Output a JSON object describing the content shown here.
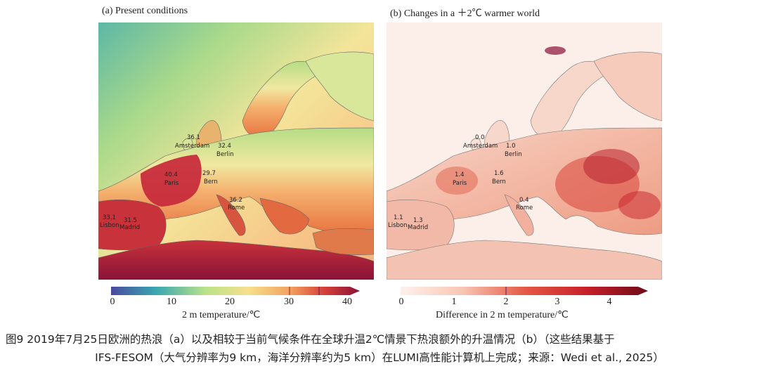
{
  "panel_a": {
    "title": "(a) Present conditions",
    "colorbar_label": "2 m temperature/℃",
    "ticks": [
      "0",
      "10",
      "20",
      "30",
      "40"
    ],
    "cities": [
      {
        "name": "Amsterdam",
        "value": "36.1"
      },
      {
        "name": "Berlin",
        "value": "32.4"
      },
      {
        "name": "Paris",
        "value": "40.4"
      },
      {
        "name": "Bern",
        "value": "29.7"
      },
      {
        "name": "Rome",
        "value": "36.2"
      },
      {
        "name": "Lisbon",
        "value": "33.1"
      },
      {
        "name": "Madrid",
        "value": "31.5"
      }
    ]
  },
  "panel_b": {
    "title": "(b) Changes in a ＋2℃ warmer world",
    "colorbar_label": "Difference in 2 m temperature/℃",
    "ticks": [
      "0",
      "1",
      "2",
      "3",
      "4"
    ],
    "cities": [
      {
        "name": "Amsterdam",
        "value": "0.0"
      },
      {
        "name": "Berlin",
        "value": "1.0"
      },
      {
        "name": "Paris",
        "value": "1.4"
      },
      {
        "name": "Bern",
        "value": "1.6"
      },
      {
        "name": "Rome",
        "value": "0.4"
      },
      {
        "name": "Lisbon",
        "value": "1.1"
      },
      {
        "name": "Madrid",
        "value": "1.3"
      }
    ]
  },
  "caption": {
    "line1": "图9  2019年7月25日欧洲的热浪（a）以及相较于当前气候条件在全球升温2℃情景下热浪额外的升温情况（b）（这些结果基于",
    "line2": "IFS-FESOM（大气分辨率为9 km，海洋分辨率约为5 km）在LUMI高性能计算机上完成；来源：Wedi et al., 2025）"
  },
  "colors": {
    "temp_scale": [
      "#4a4aa0",
      "#3aa7b0",
      "#b9e28a",
      "#f6e08c",
      "#f3a160",
      "#d8443b",
      "#8b1038"
    ],
    "diff_scale": [
      "#fdf1ec",
      "#f8c6b4",
      "#e55a45",
      "#c8202a",
      "#6e0a18"
    ]
  }
}
